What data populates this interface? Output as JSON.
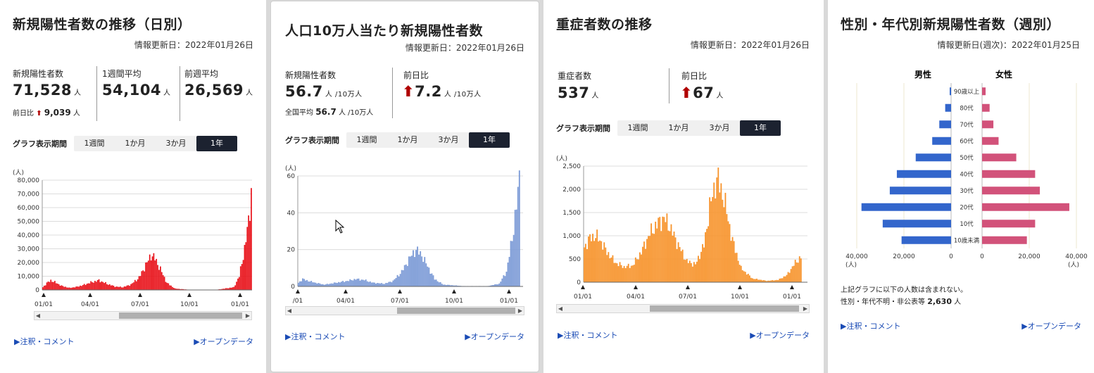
{
  "cards": {
    "c1": {
      "title": "新規陽性者数の推移（日別）",
      "updated": "情報更新日：2022年01月26日",
      "stats": [
        {
          "label": "新規陽性者数",
          "value": "71,528",
          "unit": "人"
        },
        {
          "label": "1週間平均",
          "value": "54,104",
          "unit": "人"
        },
        {
          "label": "前週平均",
          "value": "26,569",
          "unit": "人"
        }
      ],
      "sub_label": "前日比",
      "sub_arrow": "⬆",
      "sub_value": "9,039",
      "sub_unit": "人",
      "period_label": "グラフ表示期間",
      "periods": [
        "1週間",
        "1か月",
        "3か月",
        "1年"
      ],
      "annotation_link": "▶注釈・コメント",
      "opendata_link": "▶オープンデータ"
    },
    "c2": {
      "title": "人口10万人当たり新規陽性者数",
      "updated": "情報更新日：2022年01月26日",
      "stats": [
        {
          "label": "新規陽性者数",
          "value": "56.7",
          "unit": "人 /10万人"
        },
        {
          "label": "前日比",
          "arrow": "⬆",
          "value": "7.2",
          "unit": "人 /10万人"
        }
      ],
      "sub_label": "全国平均",
      "sub_value": "56.7",
      "sub_unit": "人 /10万人",
      "period_label": "グラフ表示期間",
      "periods": [
        "1週間",
        "1か月",
        "3か月",
        "1年"
      ],
      "annotation_link": "▶注釈・コメント",
      "opendata_link": "▶オープンデータ"
    },
    "c3": {
      "title": "重症者数の推移",
      "updated": "情報更新日：2022年01月26日",
      "stats": [
        {
          "label": "重症者数",
          "value": "537",
          "unit": "人"
        },
        {
          "label": "前日比",
          "arrow": "⬆",
          "value": "67",
          "unit": "人"
        }
      ],
      "period_label": "グラフ表示期間",
      "periods": [
        "1週間",
        "1か月",
        "3か月",
        "1年"
      ],
      "annotation_link": "▶注釈・コメント",
      "opendata_link": "▶オープンデータ"
    },
    "c4": {
      "title": "性別・年代別新規陽性者数（週別）",
      "updated": "情報更新日(週次)：2022年01月25日",
      "note1": "上記グラフに以下の人数は含まれない。",
      "note2_label": "性別・年代不明・非公表等",
      "note2_value": "2,630",
      "note2_unit": "人",
      "annotation_link": "▶注釈・コメント",
      "opendata_link": "▶オープンデータ"
    }
  },
  "colors": {
    "red": "#e8121a",
    "blue": "#7b9ad6",
    "orange": "#f7932b",
    "male": "#3366cc",
    "female": "#d2527a",
    "active": "#1c2230"
  },
  "chart_data": [
    {
      "type": "bar",
      "series_color": "#e8121a",
      "ylabel": "(人)",
      "ylim": [
        0,
        80000
      ],
      "yticks": [
        "0",
        "10,000",
        "20,000",
        "30,000",
        "40,000",
        "50,000",
        "60,000",
        "70,000",
        "80,000"
      ],
      "xticks": [
        "01/01",
        "04/01",
        "07/01",
        "10/01",
        "01/01"
      ],
      "curve": [
        [
          0,
          2000
        ],
        [
          3,
          5000
        ],
        [
          6,
          7000
        ],
        [
          10,
          5200
        ],
        [
          14,
          3000
        ],
        [
          20,
          1500
        ],
        [
          25,
          2200
        ],
        [
          30,
          3500
        ],
        [
          36,
          5500
        ],
        [
          42,
          7000
        ],
        [
          48,
          4500
        ],
        [
          54,
          2500
        ],
        [
          60,
          2000
        ],
        [
          66,
          4000
        ],
        [
          72,
          9000
        ],
        [
          77,
          18000
        ],
        [
          81,
          25500
        ],
        [
          84,
          23000
        ],
        [
          88,
          15000
        ],
        [
          93,
          5000
        ],
        [
          99,
          1000
        ],
        [
          110,
          150
        ],
        [
          130,
          150
        ],
        [
          143,
          2000
        ],
        [
          147,
          10000
        ],
        [
          151,
          30000
        ],
        [
          154,
          50000
        ],
        [
          156,
          72000
        ]
      ]
    },
    {
      "type": "bar",
      "series_color": "#7b9ad6",
      "ylabel": "(人)",
      "ylim": [
        0,
        60
      ],
      "yticks": [
        "0",
        "20",
        "40",
        "60"
      ],
      "xticks": [
        "/01",
        "04/01",
        "07/01",
        "10/01",
        "01/01"
      ],
      "curve": [
        [
          0,
          2
        ],
        [
          3,
          4
        ],
        [
          7,
          3
        ],
        [
          12,
          2
        ],
        [
          18,
          1
        ],
        [
          26,
          2
        ],
        [
          34,
          3
        ],
        [
          40,
          4
        ],
        [
          46,
          3.5
        ],
        [
          52,
          2
        ],
        [
          60,
          1.5
        ],
        [
          66,
          3
        ],
        [
          72,
          8
        ],
        [
          78,
          16
        ],
        [
          82,
          20
        ],
        [
          86,
          17
        ],
        [
          90,
          11
        ],
        [
          95,
          4
        ],
        [
          101,
          1
        ],
        [
          115,
          0.2
        ],
        [
          132,
          0.2
        ],
        [
          140,
          1.5
        ],
        [
          145,
          8
        ],
        [
          149,
          26
        ],
        [
          152,
          44
        ],
        [
          154,
          58
        ]
      ]
    },
    {
      "type": "area",
      "series_color": "#f7932b",
      "ylabel": "(人)",
      "ylim": [
        0,
        2500
      ],
      "yticks": [
        "0",
        "500",
        "1,000",
        "1,500",
        "2,000",
        "2,500"
      ],
      "xticks": [
        "01/01",
        "04/01",
        "07/01",
        "10/01",
        "01/01"
      ],
      "curve": [
        [
          0,
          750
        ],
        [
          4,
          950
        ],
        [
          8,
          1000
        ],
        [
          12,
          870
        ],
        [
          16,
          650
        ],
        [
          22,
          420
        ],
        [
          28,
          330
        ],
        [
          34,
          360
        ],
        [
          40,
          650
        ],
        [
          46,
          1050
        ],
        [
          52,
          1280
        ],
        [
          56,
          1380
        ],
        [
          60,
          1200
        ],
        [
          66,
          800
        ],
        [
          72,
          450
        ],
        [
          78,
          380
        ],
        [
          84,
          800
        ],
        [
          88,
          1600
        ],
        [
          92,
          2150
        ],
        [
          94,
          2200
        ],
        [
          98,
          1800
        ],
        [
          104,
          900
        ],
        [
          110,
          300
        ],
        [
          118,
          80
        ],
        [
          128,
          30
        ],
        [
          136,
          50
        ],
        [
          142,
          150
        ],
        [
          148,
          420
        ],
        [
          152,
          540
        ]
      ]
    },
    {
      "type": "bar",
      "orientation": "horizontal",
      "legend": [
        "男性",
        "女性"
      ],
      "categories": [
        "90歳以上",
        "80代",
        "70代",
        "60代",
        "50代",
        "40代",
        "30代",
        "20代",
        "10代",
        "10歳未満"
      ],
      "male": [
        600,
        2500,
        5000,
        8000,
        15000,
        23000,
        26000,
        38000,
        29000,
        21000
      ],
      "female": [
        1500,
        3200,
        4800,
        7000,
        14500,
        22500,
        24500,
        37000,
        22500,
        19000
      ],
      "xticks": [
        "40,000",
        "20,000",
        "0",
        "0",
        "20,000",
        "40,000"
      ],
      "xunit": "(人)",
      "xlim": [
        0,
        40000
      ]
    }
  ]
}
